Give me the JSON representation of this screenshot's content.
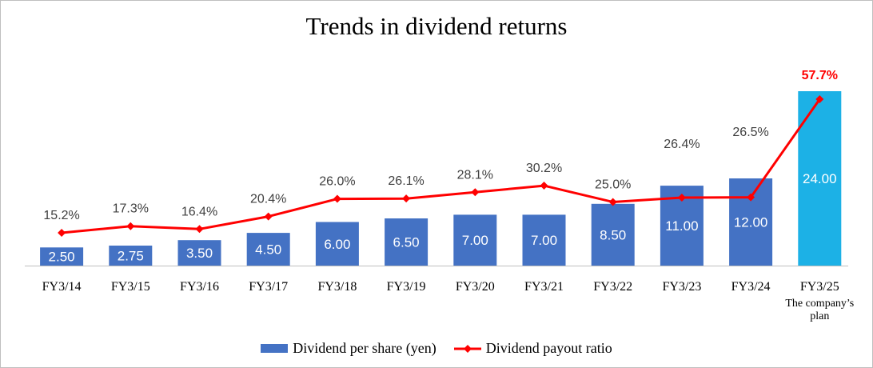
{
  "chart_data": {
    "type": "bar",
    "title": "Trends in dividend returns",
    "categories": [
      "FY3/14",
      "FY3/15",
      "FY3/16",
      "FY3/17",
      "FY3/18",
      "FY3/19",
      "FY3/20",
      "FY3/21",
      "FY3/22",
      "FY3/23",
      "FY3/24",
      "FY3/25"
    ],
    "category_notes": [
      "",
      "",
      "",
      "",
      "",
      "",
      "",
      "",
      "",
      "",
      "",
      "The company’s plan"
    ],
    "series": [
      {
        "name": "Dividend per share (yen)",
        "type": "bar",
        "values": [
          2.5,
          2.75,
          3.5,
          4.5,
          6.0,
          6.5,
          7.0,
          7.0,
          8.5,
          11.0,
          12.0,
          24.0
        ],
        "labels": [
          "2.50",
          "2.75",
          "3.50",
          "4.50",
          "6.00",
          "6.50",
          "7.00",
          "7.00",
          "8.50",
          "11.00",
          "12.00",
          "24.00"
        ],
        "color": "#4472c4",
        "highlight_color": "#1cb1e6",
        "highlight_index": 11
      },
      {
        "name": "Dividend payout ratio",
        "type": "line",
        "values": [
          15.2,
          17.3,
          16.4,
          20.4,
          26.0,
          26.1,
          28.1,
          30.2,
          25.0,
          26.4,
          26.5,
          57.7
        ],
        "labels": [
          "15.2%",
          "17.3%",
          "16.4%",
          "20.4%",
          "26.0%",
          "26.1%",
          "28.1%",
          "30.2%",
          "25.0%",
          "26.4%",
          "26.5%",
          "57.7%"
        ],
        "color": "#ff0000",
        "label_color": "#404040",
        "highlight_label_color": "#ff0000",
        "highlight_index": 11
      }
    ],
    "legend_position": "bottom",
    "grid": false
  }
}
